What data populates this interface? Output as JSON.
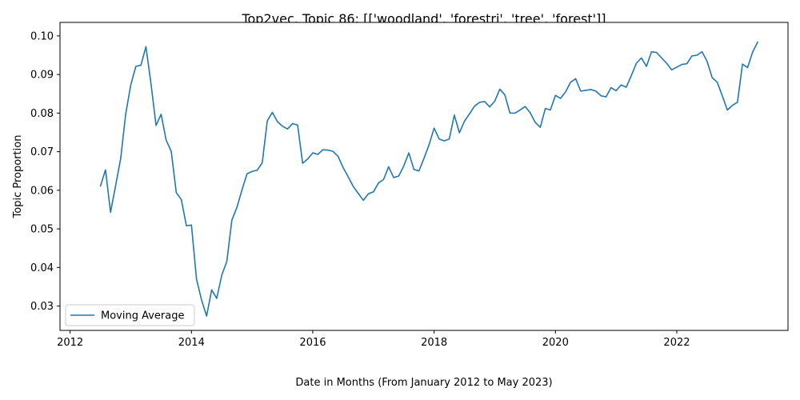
{
  "chart_data": {
    "type": "line",
    "title": "Top2vec, Topic 86: [['woodland', 'forestri', 'tree', 'forest']]",
    "xlabel": "Date in Months (From January 2012 to May 2023)",
    "ylabel": "Topic Proportion",
    "xlim": [
      "2011-11",
      "2023-11"
    ],
    "ylim": [
      0.0237,
      0.1035
    ],
    "x_ticks": [
      "2012",
      "2014",
      "2016",
      "2018",
      "2020",
      "2022"
    ],
    "y_ticks": [
      "0.03",
      "0.04",
      "0.05",
      "0.06",
      "0.07",
      "0.08",
      "0.09",
      "0.10"
    ],
    "grid": false,
    "legend_position": "lower-left",
    "series": [
      {
        "name": "Moving Average",
        "color": "#1f77b4",
        "x": [
          "2012-07",
          "2012-08",
          "2012-09",
          "2012-10",
          "2012-11",
          "2012-12",
          "2013-01",
          "2013-02",
          "2013-03",
          "2013-04",
          "2013-05",
          "2013-06",
          "2013-07",
          "2013-08",
          "2013-09",
          "2013-10",
          "2013-11",
          "2013-12",
          "2014-01",
          "2014-02",
          "2014-03",
          "2014-04",
          "2014-05",
          "2014-06",
          "2014-07",
          "2014-08",
          "2014-09",
          "2014-10",
          "2014-11",
          "2014-12",
          "2015-01",
          "2015-02",
          "2015-03",
          "2015-04",
          "2015-05",
          "2015-06",
          "2015-07",
          "2015-08",
          "2015-09",
          "2015-10",
          "2015-11",
          "2015-12",
          "2016-01",
          "2016-02",
          "2016-03",
          "2016-04",
          "2016-05",
          "2016-06",
          "2016-07",
          "2016-08",
          "2016-09",
          "2016-10",
          "2016-11",
          "2016-12",
          "2017-01",
          "2017-02",
          "2017-03",
          "2017-04",
          "2017-05",
          "2017-06",
          "2017-07",
          "2017-08",
          "2017-09",
          "2017-10",
          "2017-11",
          "2017-12",
          "2018-01",
          "2018-02",
          "2018-03",
          "2018-04",
          "2018-05",
          "2018-06",
          "2018-07",
          "2018-08",
          "2018-09",
          "2018-10",
          "2018-11",
          "2018-12",
          "2019-01",
          "2019-02",
          "2019-03",
          "2019-04",
          "2019-05",
          "2019-06",
          "2019-07",
          "2019-08",
          "2019-09",
          "2019-10",
          "2019-11",
          "2019-12",
          "2020-01",
          "2020-02",
          "2020-03",
          "2020-04",
          "2020-05",
          "2020-06",
          "2020-07",
          "2020-08",
          "2020-09",
          "2020-10",
          "2020-11",
          "2020-12",
          "2021-01",
          "2021-02",
          "2021-03",
          "2021-04",
          "2021-05",
          "2021-06",
          "2021-07",
          "2021-08",
          "2021-09",
          "2021-10",
          "2021-11",
          "2021-12",
          "2022-01",
          "2022-02",
          "2022-03",
          "2022-04",
          "2022-05",
          "2022-06",
          "2022-07",
          "2022-08",
          "2022-09",
          "2022-10",
          "2022-11",
          "2022-12",
          "2023-01",
          "2023-02",
          "2023-03",
          "2023-04",
          "2023-05"
        ],
        "values": [
          0.0611,
          0.0653,
          0.0543,
          0.0612,
          0.0682,
          0.0798,
          0.0873,
          0.0921,
          0.0924,
          0.0972,
          0.0876,
          0.0768,
          0.0797,
          0.073,
          0.0701,
          0.0594,
          0.0576,
          0.0508,
          0.051,
          0.037,
          0.0316,
          0.0274,
          0.0342,
          0.032,
          0.038,
          0.0416,
          0.0523,
          0.0556,
          0.0601,
          0.0643,
          0.0649,
          0.0652,
          0.0671,
          0.078,
          0.0802,
          0.0778,
          0.0766,
          0.0759,
          0.0773,
          0.0769,
          0.067,
          0.0681,
          0.0697,
          0.0693,
          0.0705,
          0.0704,
          0.0701,
          0.0688,
          0.0659,
          0.0635,
          0.061,
          0.0592,
          0.0574,
          0.0591,
          0.0596,
          0.0619,
          0.0628,
          0.0661,
          0.0633,
          0.0637,
          0.0663,
          0.0697,
          0.0654,
          0.065,
          0.0683,
          0.0718,
          0.0761,
          0.0733,
          0.0728,
          0.0733,
          0.0795,
          0.0749,
          0.0779,
          0.0798,
          0.0818,
          0.0828,
          0.083,
          0.0816,
          0.0831,
          0.0862,
          0.0847,
          0.08,
          0.08,
          0.0808,
          0.0817,
          0.0801,
          0.0776,
          0.0763,
          0.0812,
          0.0808,
          0.0846,
          0.0838,
          0.0855,
          0.088,
          0.0889,
          0.0857,
          0.0859,
          0.0861,
          0.0857,
          0.0845,
          0.0842,
          0.0866,
          0.0858,
          0.0873,
          0.0867,
          0.0897,
          0.0929,
          0.0943,
          0.0921,
          0.0959,
          0.0957,
          0.0943,
          0.0929,
          0.0912,
          0.0919,
          0.0926,
          0.0928,
          0.0948,
          0.095,
          0.0959,
          0.0934,
          0.0892,
          0.088,
          0.0845,
          0.0808,
          0.082,
          0.0828,
          0.0927,
          0.0918,
          0.0958,
          0.0984
        ]
      }
    ]
  }
}
